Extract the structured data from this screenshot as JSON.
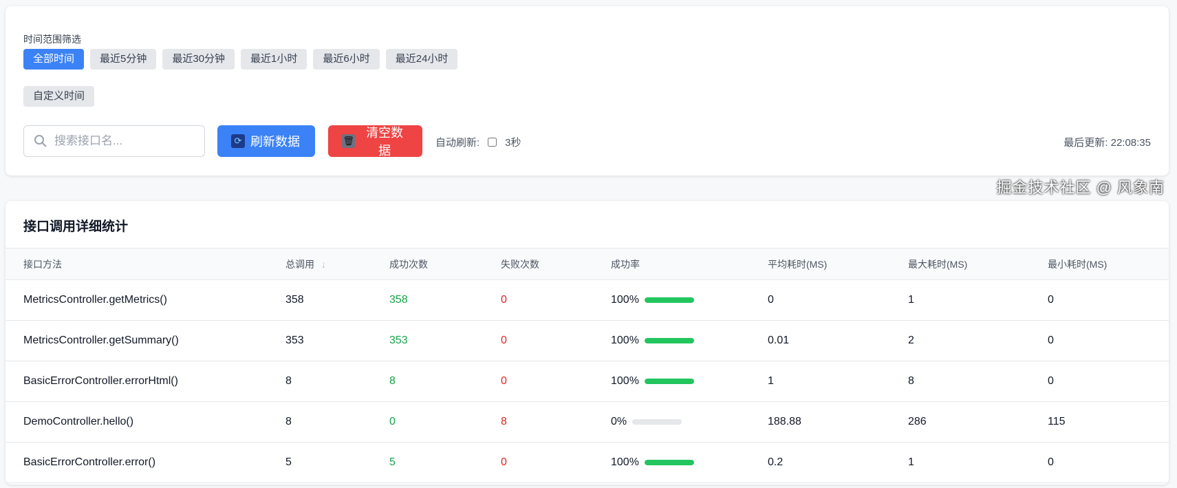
{
  "filter": {
    "label": "时间范围筛选",
    "ranges": [
      "全部时间",
      "最近5分钟",
      "最近30分钟",
      "最近1小时",
      "最近6小时",
      "最近24小时"
    ],
    "active_index": 0,
    "custom_label": "自定义时间",
    "search_placeholder": "搜索接口名...",
    "search_value": "",
    "refresh_label": "刷新数据",
    "clear_label": "清空数据",
    "auto_refresh_label": "自动刷新:",
    "auto_refresh_checked": false,
    "auto_refresh_interval": "3秒",
    "last_update": "最后更新: 22:08:35"
  },
  "stats": {
    "title": "接口调用详细统计",
    "columns": [
      "接口方法",
      "总调用",
      "成功次数",
      "失败次数",
      "成功率",
      "平均耗时(MS)",
      "最大耗时(MS)",
      "最小耗时(MS)"
    ],
    "sort_icon": "arrow-down",
    "rows": [
      {
        "method": "MetricsController.getMetrics()",
        "total": "358",
        "success": "358",
        "fail": "0",
        "rate": "100%",
        "rate_value": 100,
        "avg": "0",
        "max": "1",
        "min": "0"
      },
      {
        "method": "MetricsController.getSummary()",
        "total": "353",
        "success": "353",
        "fail": "0",
        "rate": "100%",
        "rate_value": 100,
        "avg": "0.01",
        "max": "2",
        "min": "0"
      },
      {
        "method": "BasicErrorController.errorHtml()",
        "total": "8",
        "success": "8",
        "fail": "0",
        "rate": "100%",
        "rate_value": 100,
        "avg": "1",
        "max": "8",
        "min": "0"
      },
      {
        "method": "DemoController.hello()",
        "total": "8",
        "success": "0",
        "fail": "8",
        "rate": "0%",
        "rate_value": 0,
        "avg": "188.88",
        "max": "286",
        "min": "115"
      },
      {
        "method": "BasicErrorController.error()",
        "total": "5",
        "success": "5",
        "fail": "0",
        "rate": "100%",
        "rate_value": 100,
        "avg": "0.2",
        "max": "1",
        "min": "0"
      }
    ]
  },
  "colors": {
    "primary": "#3b82f6",
    "danger": "#ef4444",
    "success": "#16a34a",
    "bar": "#22c55e"
  },
  "watermark": "掘金技术社区 @ 风象南"
}
